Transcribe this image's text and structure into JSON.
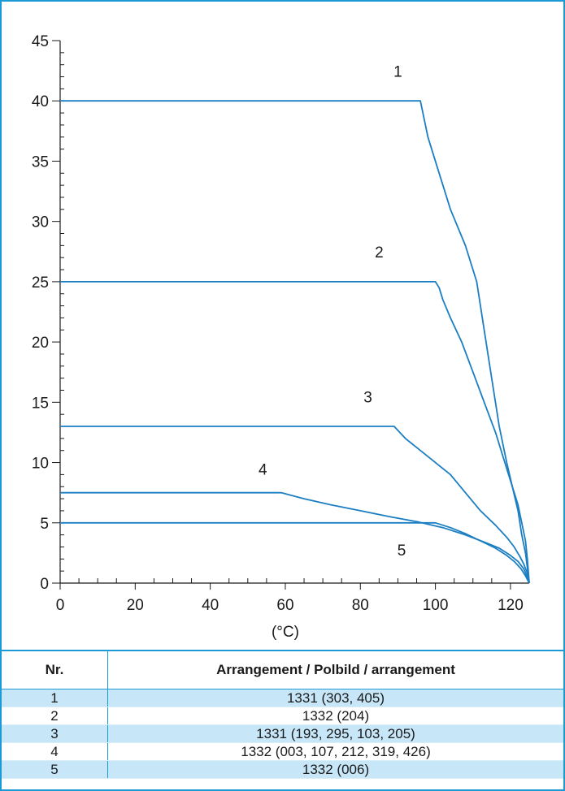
{
  "chart_data": {
    "type": "line",
    "xlabel": "(°C)",
    "ylabel": "",
    "xlim": [
      0,
      125
    ],
    "ylim": [
      0,
      45
    ],
    "x_ticks": [
      0,
      20,
      40,
      60,
      80,
      100,
      120
    ],
    "y_ticks": [
      0,
      5,
      10,
      15,
      20,
      25,
      30,
      35,
      40,
      45
    ],
    "grid": false,
    "series": [
      {
        "name": "1",
        "points": [
          [
            0,
            40
          ],
          [
            96,
            40
          ],
          [
            98,
            37
          ],
          [
            101,
            34
          ],
          [
            104,
            31
          ],
          [
            108,
            28
          ],
          [
            111,
            25
          ],
          [
            113,
            21
          ],
          [
            115,
            17
          ],
          [
            117,
            13
          ],
          [
            119,
            10
          ],
          [
            120.5,
            8
          ],
          [
            122,
            6
          ],
          [
            123,
            4
          ],
          [
            124,
            2.5
          ],
          [
            124.6,
            1
          ],
          [
            125,
            0
          ]
        ]
      },
      {
        "name": "2",
        "points": [
          [
            0,
            25
          ],
          [
            100,
            25
          ],
          [
            101,
            24.5
          ],
          [
            102,
            23.5
          ],
          [
            104,
            22
          ],
          [
            107,
            20
          ],
          [
            110,
            17.5
          ],
          [
            113,
            15
          ],
          [
            116,
            12.5
          ],
          [
            118,
            10.5
          ],
          [
            120,
            8.5
          ],
          [
            122,
            6.5
          ],
          [
            123,
            5
          ],
          [
            124,
            3.5
          ],
          [
            124.5,
            2
          ],
          [
            125,
            0
          ]
        ]
      },
      {
        "name": "3",
        "points": [
          [
            0,
            13
          ],
          [
            89,
            13
          ],
          [
            92,
            12
          ],
          [
            96,
            11
          ],
          [
            100,
            10
          ],
          [
            104,
            9
          ],
          [
            108,
            7.5
          ],
          [
            112,
            6
          ],
          [
            116,
            4.8
          ],
          [
            119,
            3.8
          ],
          [
            121,
            3
          ],
          [
            122.5,
            2.2
          ],
          [
            123.5,
            1.6
          ],
          [
            124.5,
            0.8
          ],
          [
            125,
            0
          ]
        ]
      },
      {
        "name": "4",
        "points": [
          [
            0,
            7.5
          ],
          [
            59,
            7.5
          ],
          [
            65,
            7
          ],
          [
            72,
            6.5
          ],
          [
            80,
            6
          ],
          [
            88,
            5.5
          ],
          [
            95,
            5.1
          ],
          [
            102,
            4.6
          ],
          [
            108,
            4
          ],
          [
            113,
            3.4
          ],
          [
            117,
            2.9
          ],
          [
            120,
            2.3
          ],
          [
            122,
            1.8
          ],
          [
            123.5,
            1.2
          ],
          [
            124.5,
            0.5
          ],
          [
            125,
            0
          ]
        ]
      },
      {
        "name": "5",
        "points": [
          [
            0,
            5
          ],
          [
            100,
            5
          ],
          [
            104,
            4.6
          ],
          [
            108,
            4.1
          ],
          [
            112,
            3.5
          ],
          [
            116,
            2.9
          ],
          [
            119,
            2.3
          ],
          [
            121,
            1.8
          ],
          [
            122.8,
            1.2
          ],
          [
            124,
            0.6
          ],
          [
            125,
            0
          ]
        ]
      }
    ],
    "curve_labels": [
      {
        "text": "1",
        "at": [
          90,
          42
        ]
      },
      {
        "text": "2",
        "at": [
          85,
          27
        ]
      },
      {
        "text": "3",
        "at": [
          82,
          15
        ]
      },
      {
        "text": "4",
        "at": [
          54,
          9
        ]
      },
      {
        "text": "5",
        "at": [
          91,
          2.3
        ]
      }
    ]
  },
  "table": {
    "headers": [
      "Nr.",
      "Arrangement / Polbild / arrangement"
    ],
    "rows": [
      [
        "1",
        "1331 (303, 405)"
      ],
      [
        "2",
        "1332 (204)"
      ],
      [
        "3",
        "1331 (193, 295, 103, 205)"
      ],
      [
        "4",
        "1332 (003, 107, 212, 319, 426)"
      ],
      [
        "5",
        "1332 (006)"
      ]
    ]
  },
  "colors": {
    "curve": "#1b7ec2",
    "frame": "#1b9ad6",
    "row_shade": "#c7e6f8"
  }
}
